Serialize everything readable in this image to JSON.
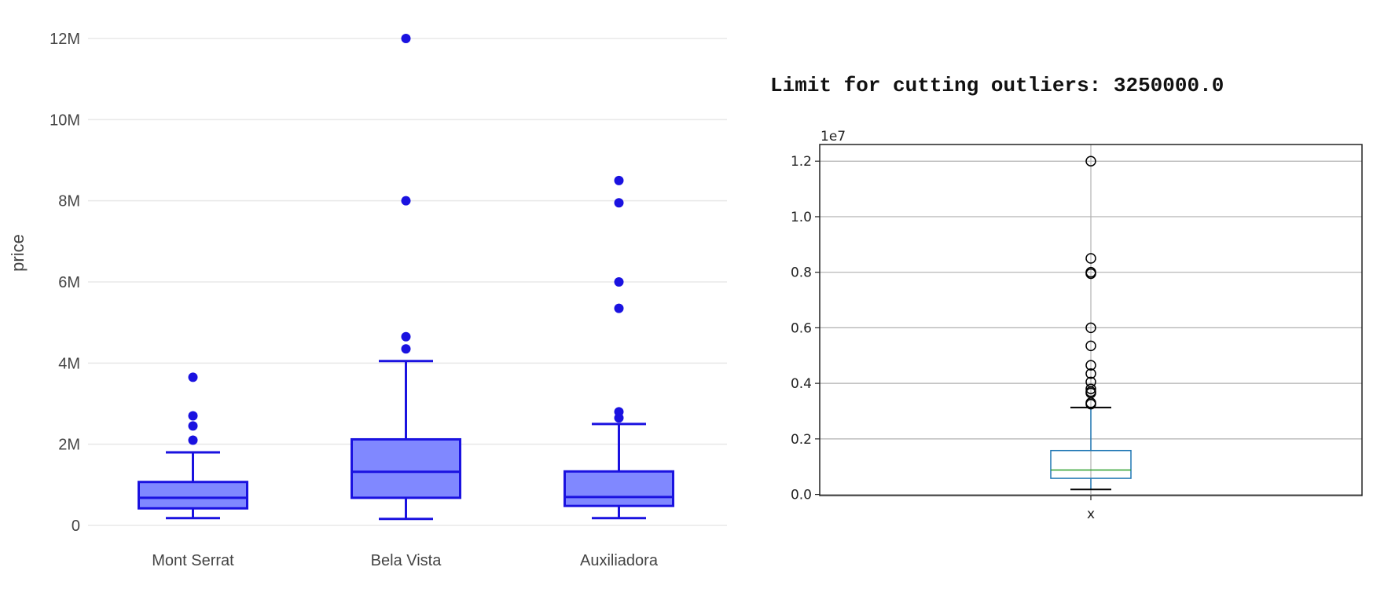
{
  "caption": "Limit for cutting outliers: 3250000.0",
  "chart_data": [
    {
      "type": "box",
      "xlabel": "",
      "ylabel": "price",
      "ylim": [
        0,
        12000000
      ],
      "yticks": [
        {
          "value": 0,
          "label": "0"
        },
        {
          "value": 2000000,
          "label": "2M"
        },
        {
          "value": 4000000,
          "label": "4M"
        },
        {
          "value": 6000000,
          "label": "6M"
        },
        {
          "value": 8000000,
          "label": "8M"
        },
        {
          "value": 10000000,
          "label": "10M"
        },
        {
          "value": 12000000,
          "label": "12M"
        }
      ],
      "grid": true,
      "colors": {
        "fill": "#8088ff",
        "stroke": "#1a12e0",
        "grid": "#e8e8e8"
      },
      "categories": [
        "Mont Serrat",
        "Bela Vista",
        "Auxiliadora"
      ],
      "boxes": [
        {
          "min": 180000,
          "q1": 420000,
          "median": 680000,
          "q3": 1070000,
          "max": 1800000,
          "outliers": [
            2100000,
            2450000,
            2700000,
            3650000
          ]
        },
        {
          "min": 160000,
          "q1": 680000,
          "median": 1320000,
          "q3": 2120000,
          "max": 4050000,
          "outliers": [
            4350000,
            4650000,
            8000000,
            12000000
          ]
        },
        {
          "min": 180000,
          "q1": 480000,
          "median": 700000,
          "q3": 1330000,
          "max": 2500000,
          "outliers": [
            2650000,
            2800000,
            5350000,
            6000000,
            7950000,
            8500000
          ]
        }
      ]
    },
    {
      "type": "box",
      "xlabel": "",
      "ylabel": "",
      "offset_label": "1e7",
      "ylim": [
        -40000,
        12600000
      ],
      "yticks": [
        {
          "value": 0,
          "label": "0.0"
        },
        {
          "value": 2000000,
          "label": "0.2"
        },
        {
          "value": 4000000,
          "label": "0.4"
        },
        {
          "value": 6000000,
          "label": "0.6"
        },
        {
          "value": 8000000,
          "label": "0.8"
        },
        {
          "value": 10000000,
          "label": "1.0"
        },
        {
          "value": 12000000,
          "label": "1.2"
        }
      ],
      "grid": true,
      "colors": {
        "box": "#1f77b4",
        "median": "#2ca02c",
        "whisker": "#1f77b4",
        "cap": "#000000",
        "flier": "#000000",
        "grid": "#b0b0b0"
      },
      "categories": [
        "x"
      ],
      "boxes": [
        {
          "min": 180000,
          "q1": 580000,
          "median": 880000,
          "q3": 1580000,
          "max": 3130000,
          "outliers": [
            3250000,
            3300000,
            3650000,
            3700000,
            3800000,
            4050000,
            4350000,
            4650000,
            5350000,
            6000000,
            7950000,
            8000000,
            8500000,
            12000000
          ]
        }
      ]
    }
  ]
}
